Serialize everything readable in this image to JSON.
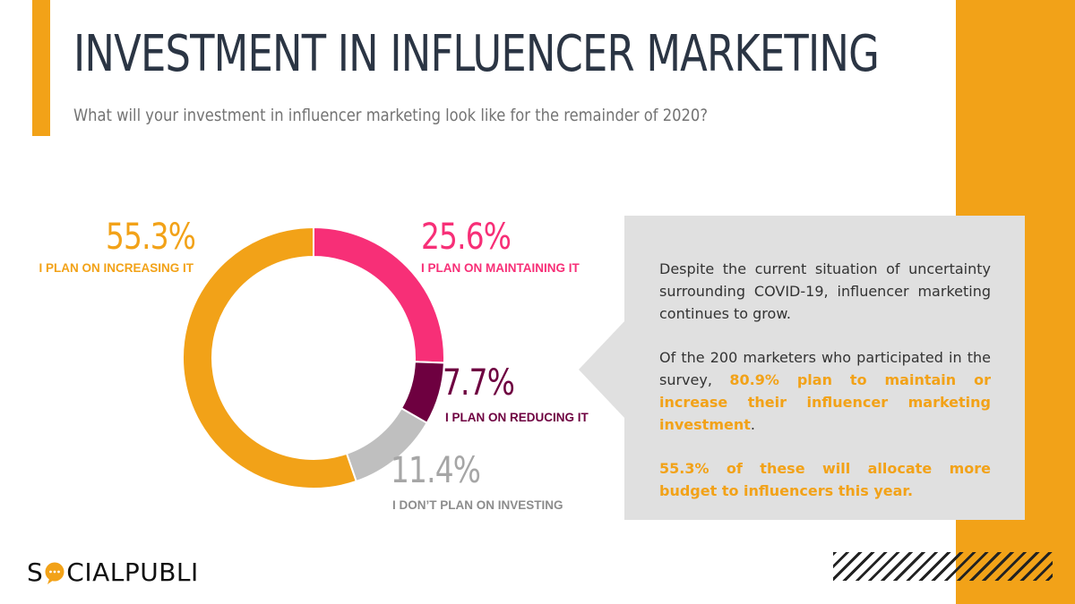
{
  "title": "INVESTMENT IN INFLUENCER MARKETING",
  "subtitle": "What will your investment in influencer marketing look like for the remainder of 2020?",
  "chart_data": {
    "type": "pie",
    "style": "donut",
    "slices": [
      {
        "key": "maintaining",
        "value": 25.6,
        "pct_label": "25.6%",
        "label": "I PLAN ON MAINTAINING IT",
        "color": "#F72F77"
      },
      {
        "key": "reducing",
        "value": 7.7,
        "pct_label": "7.7%",
        "label": "I PLAN ON REDUCING IT",
        "color": "#6E0040"
      },
      {
        "key": "notinvesting",
        "value": 11.4,
        "pct_label": "11.4%",
        "label": "I DON’T PLAN ON INVESTING",
        "color": "#BFBFBF"
      },
      {
        "key": "increasing",
        "value": 55.3,
        "pct_label": "55.3%",
        "label": "I PLAN ON INCREASING IT",
        "color": "#F2A218"
      }
    ]
  },
  "callout": {
    "p1": "Despite the current situation of uncertainty surrounding COVID-19, influencer marketing continues to grow.",
    "p2_before": "Of the 200 marketers who participated in the survey, ",
    "p2_highlight": "80.9% plan to maintain or increase their influencer marketing investment",
    "p2_after": ".",
    "p3": "55.3% of these will allocate more budget to influencers this year."
  },
  "logo": {
    "first": "S",
    "rest": "CIALPUBLI"
  },
  "colors": {
    "accent": "#F2A218",
    "title": "#2B3544",
    "panel": "#E0E0E0"
  }
}
